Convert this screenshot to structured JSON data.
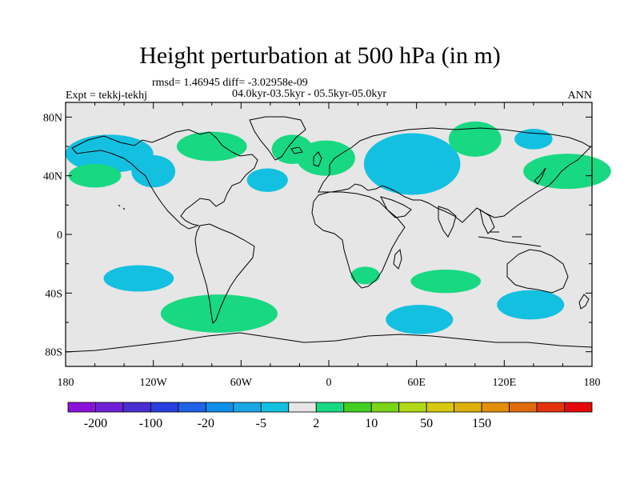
{
  "title": "Height perturbation at 500 hPa (in m)",
  "stats": "rmsd= 1.46945 diff= -3.02958e-09",
  "period": "04.0kyr-03.5kyr - 05.5kyr-05.0kyr",
  "expt": "Expt = tekkj-tekhj",
  "season": "ANN",
  "axes": {
    "lat_ticks": [
      "80N",
      "40N",
      "0",
      "40S",
      "80S"
    ],
    "lon_ticks": [
      "180",
      "120W",
      "60W",
      "0",
      "60E",
      "120E",
      "180"
    ]
  },
  "colorbar": {
    "colors": [
      "#8a12d8",
      "#6f20d6",
      "#4a2ed2",
      "#2a3ee0",
      "#1f62e6",
      "#0d8ee8",
      "#1aa6e4",
      "#13c0e0",
      "#e6e6e6",
      "#18d882",
      "#43cf21",
      "#7ad417",
      "#b2d915",
      "#d8c80e",
      "#ddb00c",
      "#e28f0c",
      "#e06a0c",
      "#e4330c",
      "#e5090b"
    ],
    "labels": [
      "-200",
      "-100",
      "-20",
      "-5",
      "2",
      "10",
      "50",
      "150"
    ],
    "label_positions": [
      1,
      3,
      5,
      7,
      9,
      11,
      13,
      15
    ]
  },
  "colors": {
    "land_bg": "#e6e6e6",
    "positive": "#18d882",
    "negative": "#13c0e0",
    "coast": "#000000"
  },
  "map_data": {
    "projection": "cylindrical-equidistant",
    "lon_range": [
      -180,
      180
    ],
    "lat_range": [
      -90,
      90
    ],
    "regions": [
      {
        "sign": "negative",
        "lon": -150,
        "lat": 55,
        "rx": 30,
        "ry": 13
      },
      {
        "sign": "negative",
        "lon": -120,
        "lat": 43,
        "rx": 15,
        "ry": 11
      },
      {
        "sign": "positive",
        "lon": -160,
        "lat": 40,
        "rx": 18,
        "ry": 8
      },
      {
        "sign": "positive",
        "lon": -80,
        "lat": 60,
        "rx": 24,
        "ry": 10
      },
      {
        "sign": "positive",
        "lon": -25,
        "lat": 58,
        "rx": 14,
        "ry": 10
      },
      {
        "sign": "negative",
        "lon": -42,
        "lat": 37,
        "rx": 14,
        "ry": 8
      },
      {
        "sign": "positive",
        "lon": -2,
        "lat": 52,
        "rx": 20,
        "ry": 12
      },
      {
        "sign": "negative",
        "lon": 57,
        "lat": 48,
        "rx": 33,
        "ry": 21
      },
      {
        "sign": "positive",
        "lon": 100,
        "lat": 65,
        "rx": 18,
        "ry": 12
      },
      {
        "sign": "negative",
        "lon": 140,
        "lat": 65,
        "rx": 13,
        "ry": 7
      },
      {
        "sign": "positive",
        "lon": 163,
        "lat": 43,
        "rx": 30,
        "ry": 12
      },
      {
        "sign": "negative",
        "lon": -130,
        "lat": -30,
        "rx": 24,
        "ry": 9
      },
      {
        "sign": "positive",
        "lon": -75,
        "lat": -54,
        "rx": 40,
        "ry": 13
      },
      {
        "sign": "positive",
        "lon": 25,
        "lat": -28,
        "rx": 10,
        "ry": 6
      },
      {
        "sign": "positive",
        "lon": 80,
        "lat": -32,
        "rx": 24,
        "ry": 8
      },
      {
        "sign": "negative",
        "lon": 62,
        "lat": -58,
        "rx": 23,
        "ry": 10
      },
      {
        "sign": "negative",
        "lon": 138,
        "lat": -48,
        "rx": 23,
        "ry": 10
      }
    ]
  }
}
